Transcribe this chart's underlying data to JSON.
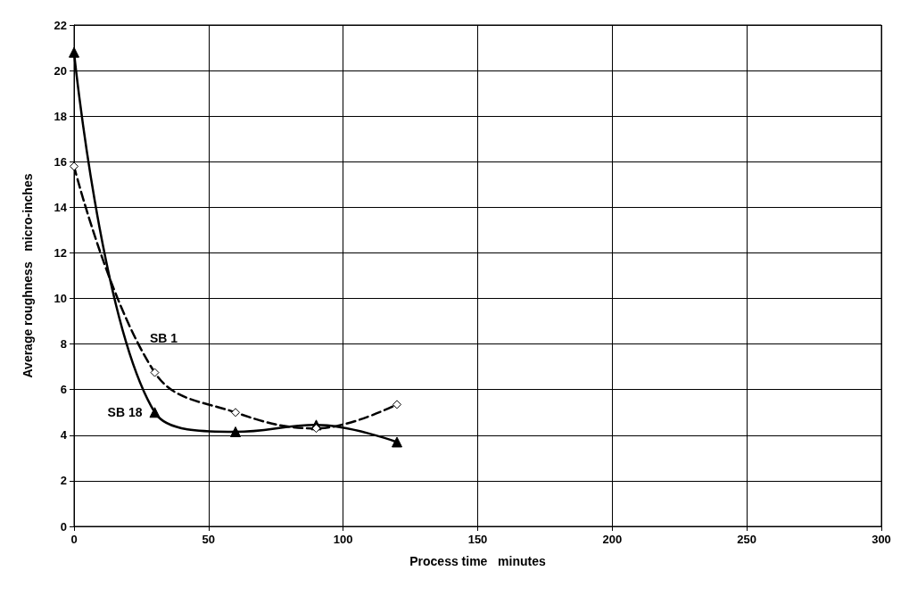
{
  "chart_data": {
    "type": "line",
    "xlabel": "Process time   minutes",
    "ylabel": "Average roughness   micro-inches",
    "xlim": [
      0,
      300
    ],
    "xticks": [
      0,
      50,
      100,
      150,
      200,
      250,
      300
    ],
    "ylim": [
      0,
      22
    ],
    "yticks": [
      0,
      2,
      4,
      6,
      8,
      10,
      12,
      14,
      16,
      18,
      20,
      22
    ],
    "grid": true,
    "legend": false,
    "series": [
      {
        "name": "SB 18",
        "color": "#000000",
        "x": [
          0,
          30,
          60,
          90,
          120
        ],
        "values": [
          20.8,
          5,
          4.15,
          4.45,
          3.7
        ],
        "marker": "triangle",
        "line_style": "solid"
      },
      {
        "name": "SB 1",
        "color": "#000000",
        "x": [
          0,
          30,
          60,
          90,
          120
        ],
        "values": [
          15.8,
          6.75,
          5,
          4.3,
          5.35
        ],
        "marker": "diamond",
        "line_style": "dashed"
      }
    ]
  }
}
